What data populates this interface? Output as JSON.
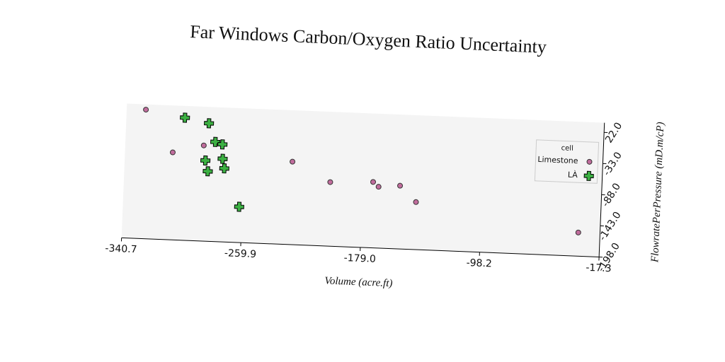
{
  "chart_data": {
    "type": "scatter",
    "title": "Far Windows Carbon/Oxygen Ratio Uncertainty",
    "x_label": "Volume (acre.ft)",
    "y_label": "FlowratePerPressure (mD.m/cP)",
    "legend_title": "cell",
    "legend_position": "upper right",
    "xlim": [
      -340.7,
      -17.3
    ],
    "xticks": [
      -340.7,
      -259.9,
      {
        "value": -179.0,
        "label": "-179.0"
      },
      -98.2,
      -17.3
    ],
    "ylim": [
      -198.0,
      39
    ],
    "yticks": [
      {
        "value": 22.0,
        "label": "22.0"
      },
      {
        "value": -33.0,
        "label": "-33.0"
      },
      {
        "value": -88.0,
        "label": "-88.0"
      },
      {
        "value": -143.0,
        "label": "-143.0"
      },
      {
        "value": -198.0,
        "label": "-198.0"
      }
    ],
    "series": [
      {
        "name": "Limestone",
        "color": "#c06c9c",
        "marker": "circle",
        "x": [
          -327.7,
          -308.4,
          -287.6,
          -227.2,
          -201.1,
          -172.1,
          -168.3,
          -153.8,
          -142.6,
          -32
        ],
        "values": [
          29.7,
          -43.7,
          -29.3,
          -51.6,
          -85,
          -81.7,
          -89.8,
          -86.4,
          -114.1,
          -156.3
        ]
      },
      {
        "name": "LÀ",
        "color": "#3cb043",
        "marker": "plus",
        "x": [
          -301.1,
          -284.7,
          -279.9,
          -275,
          -286.1,
          -274.5,
          -284.2,
          -273.1,
          -262
        ],
        "values": [
          18.3,
          10.1,
          -22.3,
          -26.1,
          -55.7,
          -51.5,
          -74.6,
          -68.3,
          -135
        ]
      }
    ]
  }
}
